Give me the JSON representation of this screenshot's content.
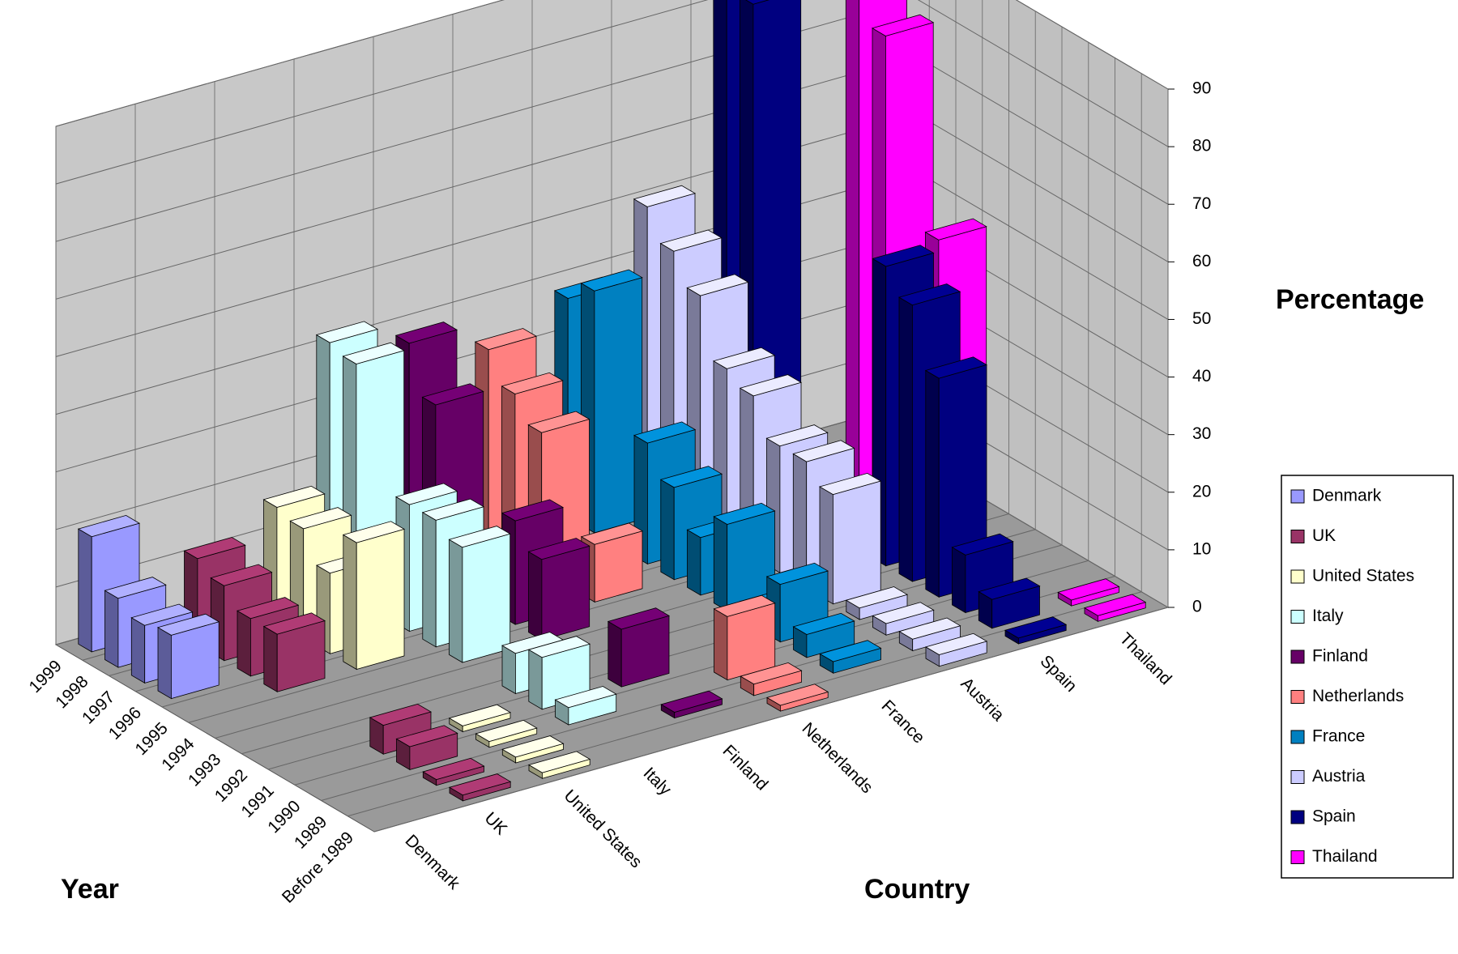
{
  "chart_data": {
    "type": "bar3d",
    "xlabel": "Year",
    "zlabel": "Country",
    "ylabel": "Percentage",
    "categories": [
      "1999",
      "1998",
      "1997",
      "1996",
      "1995",
      "1994",
      "1993",
      "1992",
      "1991",
      "1990",
      "1989",
      "Before 1989"
    ],
    "ylim": [
      0,
      90
    ],
    "yticks": [
      0,
      10,
      20,
      30,
      40,
      50,
      60,
      70,
      80,
      90
    ],
    "grid": true,
    "legend": "right",
    "series": [
      {
        "name": "Denmark",
        "color": "#9999ff",
        "values": [
          20,
          12,
          10,
          11,
          null,
          null,
          null,
          null,
          null,
          null,
          null,
          null
        ]
      },
      {
        "name": "UK",
        "color": "#993366",
        "values": [
          null,
          15,
          13,
          10,
          10,
          null,
          null,
          null,
          5,
          4,
          1,
          1
        ]
      },
      {
        "name": "United States",
        "color": "#ffffcc",
        "values": [
          null,
          20,
          19,
          14,
          22,
          null,
          null,
          null,
          1,
          1,
          1,
          1
        ]
      },
      {
        "name": "Italy",
        "color": "#ccffff",
        "values": [
          42,
          41,
          null,
          22,
          22,
          20,
          null,
          7,
          9,
          3,
          null,
          null
        ]
      },
      {
        "name": "Finland",
        "color": "#660066",
        "values": [
          38,
          30,
          null,
          null,
          18,
          14,
          null,
          null,
          10,
          null,
          1,
          null
        ]
      },
      {
        "name": "Netherlands",
        "color": "#ff8080",
        "values": [
          33,
          28,
          24,
          null,
          10,
          null,
          null,
          null,
          null,
          11,
          2,
          1
        ]
      },
      {
        "name": "France",
        "color": "#0080c0",
        "values": [
          38,
          42,
          null,
          21,
          16,
          10,
          15,
          3,
          10,
          4,
          2,
          null
        ]
      },
      {
        "name": "Austria",
        "color": "#ccccff",
        "values": [
          50,
          45,
          40,
          30,
          28,
          22,
          22,
          19,
          2,
          2,
          2,
          2
        ]
      },
      {
        "name": "Spain",
        "color": "#000080",
        "values": [
          85,
          84,
          null,
          null,
          null,
          null,
          52,
          48,
          38,
          10,
          5,
          1
        ]
      },
      {
        "name": "Thailand",
        "color": "#ff00ff",
        "values": [
          null,
          null,
          90,
          80,
          null,
          50,
          null,
          null,
          null,
          null,
          1,
          1
        ]
      }
    ]
  }
}
